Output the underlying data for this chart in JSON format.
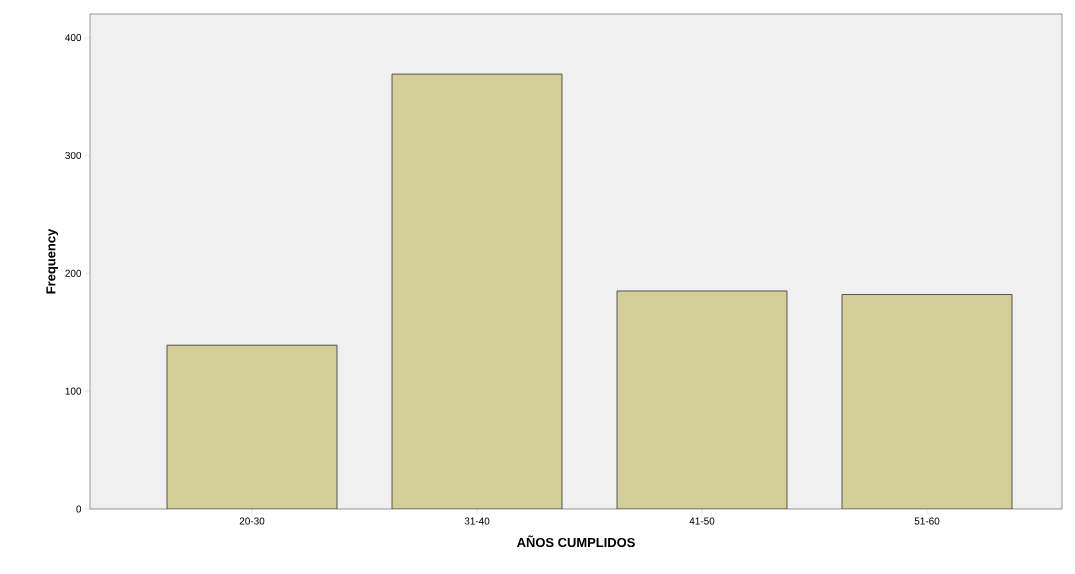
{
  "chart_data": {
    "type": "bar",
    "xlabel": "AÑOS CUMPLIDOS",
    "ylabel": "Frequency",
    "categories": [
      "20-30",
      "31-40",
      "41-50",
      "51-60"
    ],
    "values": [
      139,
      369,
      185,
      182
    ],
    "color": "#d3ce97",
    "ylim": [
      0,
      420
    ],
    "yticks": [
      0,
      100,
      200,
      300,
      400
    ]
  }
}
